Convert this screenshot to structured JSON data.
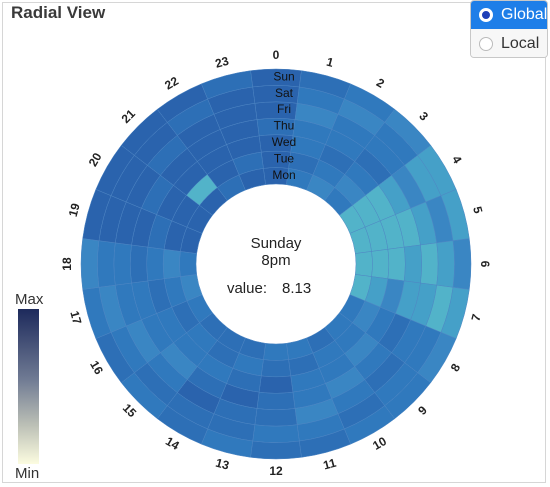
{
  "panel": {
    "title": "Radial View"
  },
  "toggle": {
    "options": [
      {
        "label": "Global",
        "selected": true
      },
      {
        "label": "Local",
        "selected": false
      }
    ]
  },
  "legend": {
    "max_label": "Max",
    "min_label": "Min"
  },
  "center": {
    "day": "Sunday",
    "hour": "8pm",
    "value_label": "value:",
    "value": "8.13"
  },
  "colors": {
    "accent": "#1e7ee8",
    "scale_max": "#1d2a5c",
    "scale_min": "#fcfce0"
  },
  "chart_data": {
    "type": "heatmap",
    "layout": "radial",
    "hours": [
      "0",
      "1",
      "2",
      "3",
      "4",
      "5",
      "6",
      "7",
      "8",
      "9",
      "10",
      "11",
      "12",
      "13",
      "14",
      "15",
      "16",
      "17",
      "18",
      "19",
      "20",
      "21",
      "22",
      "23"
    ],
    "days": [
      "Mon",
      "Tue",
      "Wed",
      "Thu",
      "Fri",
      "Sat",
      "Sun"
    ],
    "scale": {
      "min_label": "Min",
      "max_label": "Max",
      "colors": [
        "#fcfce0",
        "#1d2a5c"
      ]
    },
    "selected": {
      "day": "Sunday",
      "hour": "8pm",
      "value": 8.13
    }
  }
}
